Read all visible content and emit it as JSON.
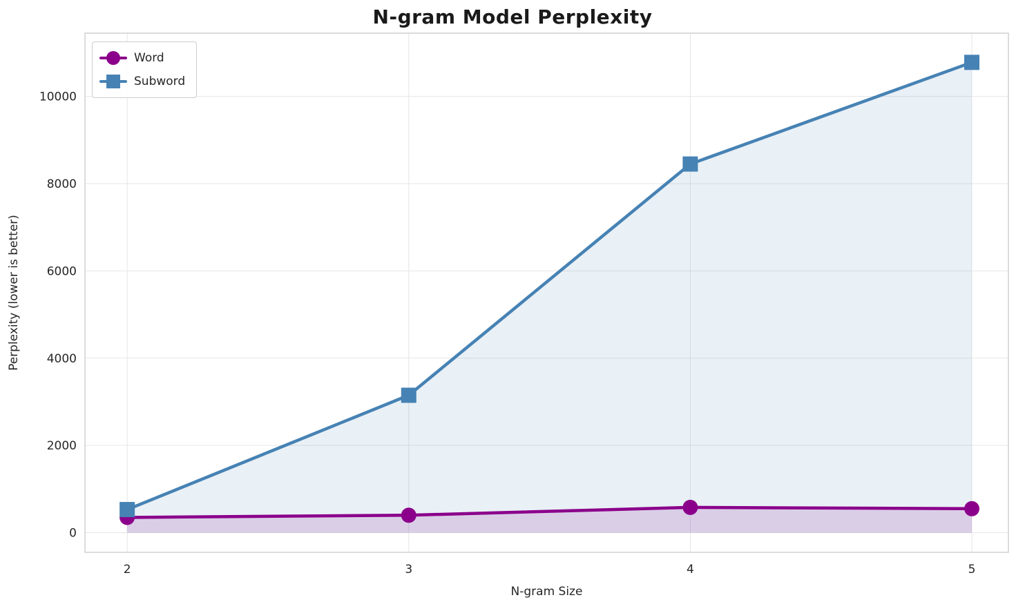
{
  "chart_data": {
    "type": "line",
    "title": "N-gram Model Perplexity",
    "xlabel": "N-gram Size",
    "ylabel": "Perplexity (lower is better)",
    "x": [
      2,
      3,
      4,
      5
    ],
    "xticks": [
      "2",
      "3",
      "4",
      "5"
    ],
    "yticks": [
      0,
      2000,
      4000,
      6000,
      8000,
      10000
    ],
    "xlim": [
      1.85,
      5.13
    ],
    "ylim": [
      -450,
      11450
    ],
    "grid": true,
    "legend_position": "upper left",
    "series": [
      {
        "name": "Word",
        "values": [
          350,
          400,
          580,
          550
        ],
        "color": "#8B008B",
        "marker": "circle",
        "fill_opacity": 0.15
      },
      {
        "name": "Subword",
        "values": [
          530,
          3150,
          8450,
          10780
        ],
        "color": "#4682B4",
        "marker": "square",
        "fill_opacity": 0.12
      }
    ],
    "colors": {
      "grid": "#e6e6e6",
      "spine": "#c9c9c9",
      "text": "#262626",
      "title": "#1a1a1a"
    }
  }
}
